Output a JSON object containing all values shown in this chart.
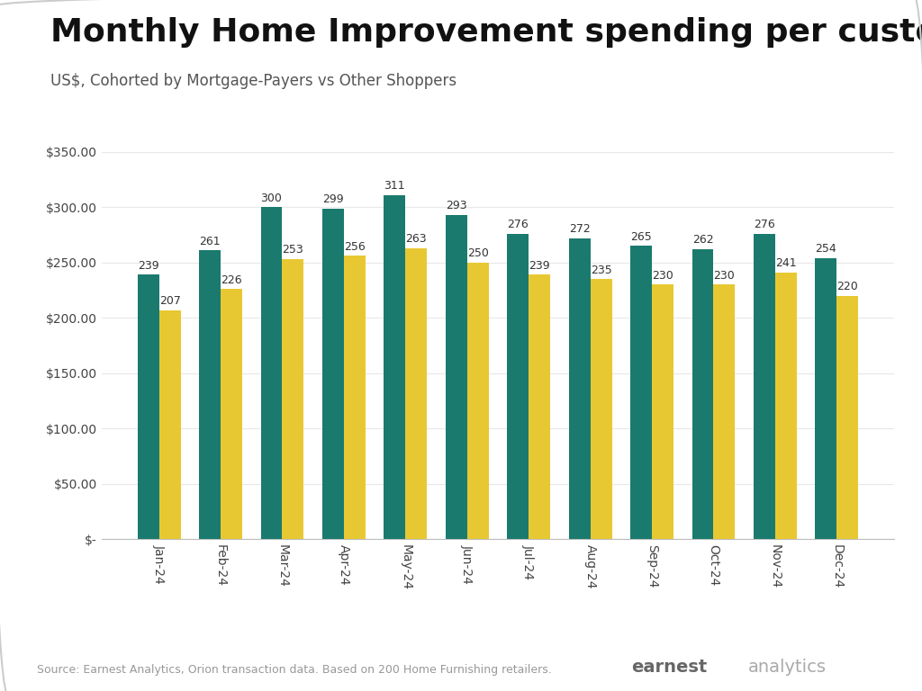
{
  "title": "Monthly Home Improvement spending per customer",
  "subtitle": "US$, Cohorted by Mortgage-Payers vs Other Shoppers",
  "categories": [
    "Jan-24",
    "Feb-24",
    "Mar-24",
    "Apr-24",
    "May-24",
    "Jun-24",
    "Jul-24",
    "Aug-24",
    "Sep-24",
    "Oct-24",
    "Nov-24",
    "Dec-24"
  ],
  "mortgage_payers": [
    239,
    261,
    300,
    299,
    311,
    293,
    276,
    272,
    265,
    262,
    276,
    254
  ],
  "other_shoppers": [
    207,
    226,
    253,
    256,
    263,
    250,
    239,
    235,
    230,
    230,
    241,
    220
  ],
  "mortgage_color": "#1a7a6e",
  "other_color": "#e8c832",
  "bar_width": 0.35,
  "ylim": [
    0,
    350
  ],
  "yticks": [
    0,
    50,
    100,
    150,
    200,
    250,
    300,
    350
  ],
  "ytick_labels": [
    "$-",
    "$50.00",
    "$100.00",
    "$150.00",
    "$200.00",
    "$250.00",
    "$300.00",
    "$350.00"
  ],
  "legend_mortgage": "Mortgage-Payers",
  "legend_other": "Other Shoppers",
  "source_text": "Source: Earnest Analytics, Orion transaction data. Based on 200 Home Furnishing retailers.",
  "background_color": "#ffffff",
  "title_fontsize": 26,
  "subtitle_fontsize": 12,
  "bar_label_fontsize": 9,
  "tick_fontsize": 10,
  "legend_fontsize": 11
}
